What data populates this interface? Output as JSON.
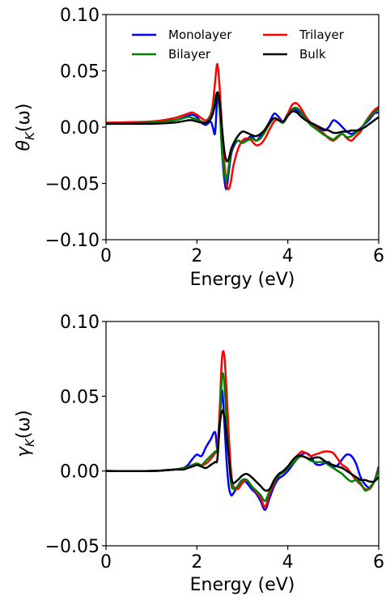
{
  "chart_data": [
    {
      "type": "line",
      "xlabel": "Energy (eV)",
      "ylabel_main": "θ",
      "ylabel_sub": "K",
      "ylabel_arg": "(ω)",
      "xlim": [
        0,
        6
      ],
      "ylim": [
        -0.1,
        0.1
      ],
      "xticks": [
        0,
        2,
        4,
        6
      ],
      "yticks": [
        -0.1,
        -0.05,
        0.0,
        0.05,
        0.1
      ],
      "xtick_labels": [
        "0",
        "2",
        "4",
        "6"
      ],
      "ytick_labels": [
        "−0.10",
        "−0.05",
        "0.00",
        "0.05",
        "0.10"
      ],
      "legend": {
        "placement": "top",
        "columns": 2
      },
      "x": [
        0.0,
        1.0,
        1.5,
        1.8,
        1.9,
        2.0,
        2.1,
        2.2,
        2.3,
        2.35,
        2.4,
        2.45,
        2.5,
        2.55,
        2.6,
        2.65,
        2.7,
        2.75,
        2.8,
        2.9,
        3.0,
        3.1,
        3.2,
        3.3,
        3.4,
        3.5,
        3.6,
        3.7,
        3.8,
        3.9,
        4.0,
        4.1,
        4.2,
        4.3,
        4.4,
        4.5,
        4.6,
        4.7,
        4.8,
        4.9,
        5.0,
        5.1,
        5.2,
        5.3,
        5.4,
        5.5,
        5.6,
        5.7,
        5.8,
        5.9,
        6.0
      ],
      "series": [
        {
          "name": "Monolayer",
          "color": "#0000ff",
          "values": [
            0.003,
            0.004,
            0.006,
            0.01,
            0.011,
            0.009,
            0.004,
            0.002,
            0.005,
            0.0,
            -0.005,
            0.026,
            0.02,
            -0.02,
            -0.045,
            -0.055,
            -0.04,
            -0.025,
            -0.018,
            -0.012,
            -0.014,
            -0.011,
            -0.008,
            -0.012,
            -0.008,
            -0.002,
            0.005,
            0.012,
            0.009,
            0.005,
            0.012,
            0.016,
            0.015,
            0.012,
            0.007,
            0.004,
            0.002,
            -0.001,
            -0.003,
            0.0,
            0.006,
            0.004,
            0.0,
            -0.004,
            -0.006,
            -0.004,
            -0.001,
            0.003,
            0.007,
            0.012,
            0.013
          ]
        },
        {
          "name": "Trilayer",
          "color": "#ff0000",
          "values": [
            0.004,
            0.005,
            0.008,
            0.012,
            0.013,
            0.011,
            0.008,
            0.006,
            0.011,
            0.02,
            0.04,
            0.056,
            0.035,
            0.0,
            -0.03,
            -0.05,
            -0.055,
            -0.048,
            -0.035,
            -0.02,
            -0.012,
            -0.01,
            -0.012,
            -0.016,
            -0.015,
            -0.01,
            -0.002,
            0.005,
            0.007,
            0.004,
            0.012,
            0.02,
            0.021,
            0.016,
            0.009,
            0.004,
            0.0,
            -0.003,
            -0.006,
            -0.01,
            -0.012,
            -0.009,
            -0.006,
            -0.01,
            -0.012,
            -0.008,
            -0.004,
            0.004,
            0.01,
            0.015,
            0.018
          ]
        },
        {
          "name": "Bilayer",
          "color": "#008000",
          "values": [
            0.003,
            0.004,
            0.006,
            0.009,
            0.008,
            0.007,
            0.005,
            0.004,
            0.009,
            0.015,
            0.025,
            0.03,
            0.016,
            -0.02,
            -0.04,
            -0.048,
            -0.035,
            -0.022,
            -0.016,
            -0.012,
            -0.014,
            -0.012,
            -0.01,
            -0.012,
            -0.01,
            -0.004,
            0.003,
            0.008,
            0.006,
            0.004,
            0.01,
            0.016,
            0.017,
            0.013,
            0.007,
            0.002,
            -0.001,
            -0.004,
            -0.007,
            -0.009,
            -0.011,
            -0.008,
            -0.006,
            -0.009,
            -0.008,
            -0.005,
            -0.002,
            0.004,
            0.009,
            0.013,
            0.016
          ]
        },
        {
          "name": "Bulk",
          "color": "#000000",
          "values": [
            0.003,
            0.003,
            0.004,
            0.006,
            0.006,
            0.005,
            0.004,
            0.004,
            0.007,
            0.012,
            0.02,
            0.031,
            0.022,
            0.0,
            -0.02,
            -0.03,
            -0.028,
            -0.02,
            -0.015,
            -0.008,
            -0.004,
            -0.005,
            -0.007,
            -0.008,
            -0.006,
            -0.002,
            0.004,
            0.008,
            0.006,
            0.005,
            0.01,
            0.014,
            0.013,
            0.009,
            0.006,
            0.004,
            0.002,
            0.0,
            -0.002,
            -0.003,
            -0.005,
            -0.005,
            -0.004,
            -0.004,
            -0.003,
            -0.003,
            -0.002,
            0.0,
            0.003,
            0.006,
            0.009
          ]
        }
      ]
    },
    {
      "type": "line",
      "xlabel": "Energy (eV)",
      "ylabel_main": "γ",
      "ylabel_sub": "K",
      "ylabel_arg": "(ω)",
      "xlim": [
        0,
        6
      ],
      "ylim": [
        -0.05,
        0.1
      ],
      "xticks": [
        0,
        2,
        4,
        6
      ],
      "yticks": [
        -0.05,
        0.0,
        0.05,
        0.1
      ],
      "xtick_labels": [
        "0",
        "2",
        "4",
        "6"
      ],
      "ytick_labels": [
        "−0.05",
        "0.00",
        "0.05",
        "0.10"
      ],
      "x": [
        0.0,
        1.0,
        1.5,
        1.7,
        1.8,
        1.9,
        2.0,
        2.1,
        2.2,
        2.3,
        2.4,
        2.45,
        2.5,
        2.55,
        2.6,
        2.65,
        2.7,
        2.75,
        2.8,
        2.9,
        3.0,
        3.1,
        3.2,
        3.3,
        3.4,
        3.5,
        3.6,
        3.7,
        3.8,
        3.9,
        4.0,
        4.1,
        4.2,
        4.3,
        4.4,
        4.5,
        4.6,
        4.7,
        4.8,
        4.9,
        5.0,
        5.1,
        5.2,
        5.3,
        5.4,
        5.5,
        5.6,
        5.7,
        5.8,
        5.9,
        6.0
      ],
      "series": [
        {
          "name": "Monolayer",
          "color": "#0000ff",
          "values": [
            0.0,
            0.0,
            0.001,
            0.002,
            0.004,
            0.008,
            0.011,
            0.01,
            0.016,
            0.021,
            0.026,
            0.015,
            0.03,
            0.054,
            0.035,
            0.008,
            -0.01,
            -0.016,
            -0.015,
            -0.01,
            -0.006,
            -0.008,
            -0.012,
            -0.015,
            -0.02,
            -0.026,
            -0.018,
            -0.01,
            -0.005,
            -0.003,
            0.0,
            0.004,
            0.008,
            0.011,
            0.012,
            0.01,
            0.005,
            0.004,
            0.005,
            0.006,
            0.003,
            0.004,
            0.008,
            0.011,
            0.01,
            0.005,
            -0.004,
            -0.009,
            -0.011,
            -0.007,
            0.003
          ]
        },
        {
          "name": "Trilayer",
          "color": "#ff0000",
          "values": [
            0.0,
            0.0,
            0.001,
            0.002,
            0.003,
            0.004,
            0.005,
            0.004,
            0.005,
            0.008,
            0.012,
            0.015,
            0.04,
            0.075,
            0.078,
            0.055,
            0.025,
            0.0,
            -0.01,
            -0.012,
            -0.008,
            -0.006,
            -0.01,
            -0.014,
            -0.018,
            -0.024,
            -0.015,
            -0.008,
            -0.003,
            0.0,
            0.003,
            0.007,
            0.01,
            0.013,
            0.012,
            0.01,
            0.011,
            0.012,
            0.013,
            0.013,
            0.012,
            0.008,
            0.004,
            0.002,
            -0.002,
            -0.006,
            -0.009,
            -0.012,
            -0.012,
            -0.007,
            0.002
          ]
        },
        {
          "name": "Bilayer",
          "color": "#008000",
          "values": [
            0.0,
            0.0,
            0.001,
            0.002,
            0.003,
            0.004,
            0.005,
            0.004,
            0.007,
            0.01,
            0.013,
            0.015,
            0.03,
            0.063,
            0.06,
            0.035,
            0.01,
            -0.008,
            -0.012,
            -0.01,
            -0.006,
            -0.006,
            -0.01,
            -0.013,
            -0.016,
            -0.02,
            -0.013,
            -0.007,
            -0.003,
            -0.001,
            0.002,
            0.005,
            0.008,
            0.01,
            0.009,
            0.007,
            0.006,
            0.006,
            0.006,
            0.004,
            0.002,
            0.0,
            -0.002,
            -0.005,
            -0.007,
            -0.006,
            -0.008,
            -0.013,
            -0.011,
            -0.007,
            0.001
          ]
        },
        {
          "name": "Bulk",
          "color": "#000000",
          "values": [
            0.0,
            0.0,
            0.001,
            0.001,
            0.002,
            0.003,
            0.004,
            0.003,
            0.002,
            0.004,
            0.006,
            0.008,
            0.03,
            0.04,
            0.037,
            0.025,
            0.01,
            -0.004,
            -0.008,
            -0.006,
            -0.003,
            -0.002,
            -0.004,
            -0.007,
            -0.01,
            -0.013,
            -0.012,
            -0.006,
            -0.002,
            0.0,
            0.003,
            0.007,
            0.01,
            0.01,
            0.009,
            0.008,
            0.009,
            0.009,
            0.007,
            0.005,
            0.004,
            0.003,
            0.002,
            0.0,
            -0.002,
            -0.004,
            -0.006,
            -0.006,
            -0.007,
            -0.007,
            -0.004
          ]
        }
      ]
    }
  ]
}
